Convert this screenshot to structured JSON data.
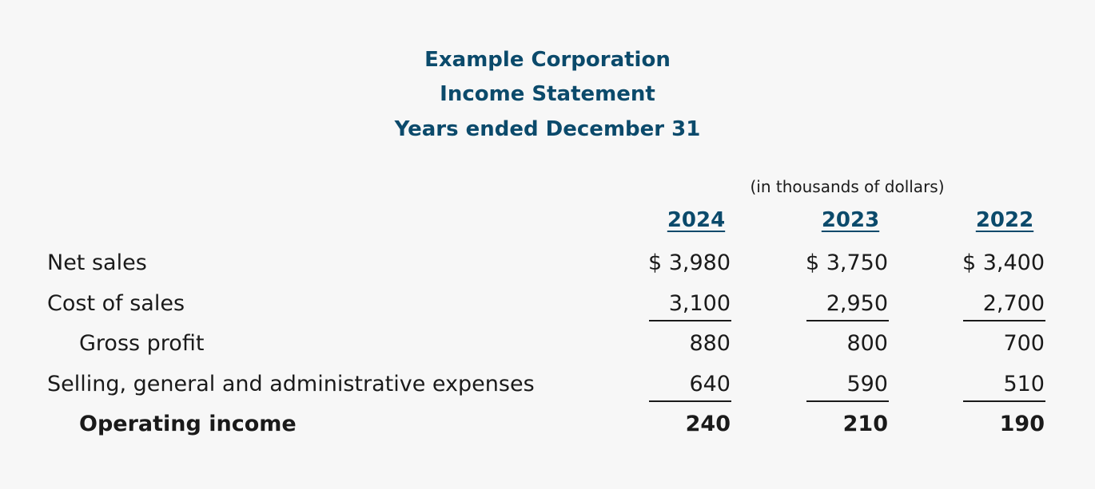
{
  "header": {
    "company": "Example Corporation",
    "statement": "Income Statement",
    "period": "Years ended December 31"
  },
  "unit_note": "(in thousands of dollars)",
  "years": [
    "2024",
    "2023",
    "2022"
  ],
  "rows": [
    {
      "label": "Net sales",
      "values": [
        "$ 3,980",
        "$ 3,750",
        "$ 3,400"
      ]
    },
    {
      "label": "Cost of sales",
      "values": [
        "3,100",
        "2,950",
        "2,700"
      ]
    },
    {
      "label": "Gross profit",
      "values": [
        "880",
        "800",
        "700"
      ]
    },
    {
      "label": "Selling, general and administrative expenses",
      "values": [
        "640",
        "590",
        "510"
      ]
    },
    {
      "label": "Operating income",
      "values": [
        "240",
        "210",
        "190"
      ]
    }
  ]
}
